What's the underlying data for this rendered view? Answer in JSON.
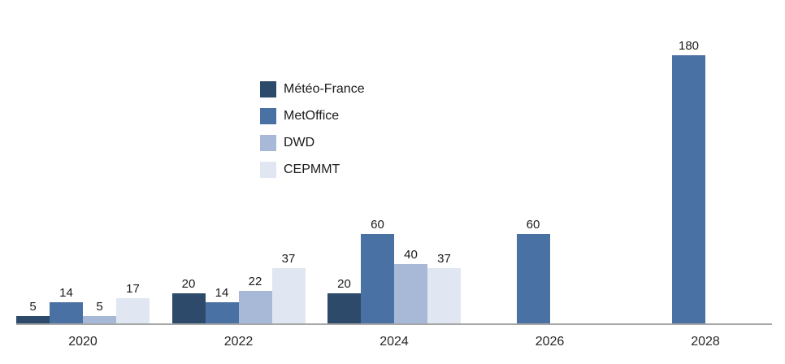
{
  "chart_data": {
    "type": "bar",
    "title": "",
    "xlabel": "",
    "ylabel": "",
    "categories": [
      "2020",
      "2022",
      "2024",
      "2026",
      "2028"
    ],
    "series": [
      {
        "name": "Météo-France",
        "color": "#2e4a6b",
        "values": [
          5,
          20,
          20,
          null,
          null
        ]
      },
      {
        "name": "MetOffice",
        "color": "#4a71a3",
        "values": [
          14,
          14,
          60,
          60,
          180
        ]
      },
      {
        "name": "DWD",
        "color": "#a7b9d6",
        "values": [
          5,
          22,
          40,
          null,
          null
        ]
      },
      {
        "name": "CEPMMT",
        "color": "#e1e7f2",
        "values": [
          17,
          37,
          37,
          null,
          null
        ]
      }
    ],
    "ylim": [
      0,
      180
    ],
    "grid": false,
    "axis_line_color": "#a6a6a6",
    "legend_position": "upper-left-center",
    "data_labels": true
  }
}
